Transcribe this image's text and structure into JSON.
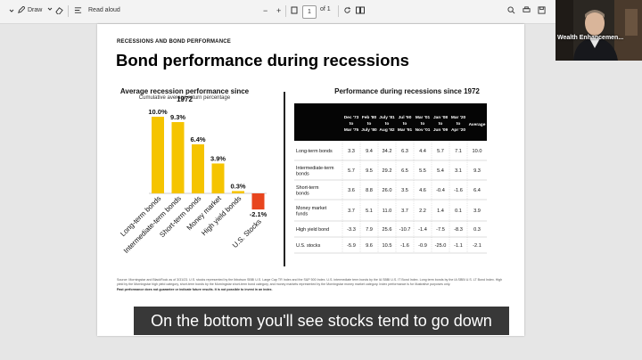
{
  "toolbar": {
    "draw_label": "Draw",
    "read_aloud_label": "Read aloud",
    "zoom_minus": "−",
    "zoom_plus": "+",
    "page_number": "1",
    "page_total": "of 1"
  },
  "document": {
    "eyebrow": "RECESSIONS AND BOND PERFORMANCE",
    "title": "Bond performance during recessions",
    "footnote_line1": "Source: Morningstar and BlackRock as of 3/31/23. U.S. stocks represented by the Ibbotson SBBI U.S. Large Cap TR Index and the S&P 500 Index. U.S. intermediate term bonds by the IA SBBI U.S. IT Bond Index. Long term bonds by the IA SBBI U.S. LT Bond Index. High yield by the Morningstar high yield category, short-term bonds by the Morningstar short-term bond category, and money markets represented by the Morningstar money market category. Index performance is for illustrative purposes only.",
    "footnote_line2": "Past performance does not guarantee or indicate future results. It is not possible to invest in an index."
  },
  "left_chart": {
    "title": "Average recession performance since 1972",
    "subtitle": "Cumulative average return percentage"
  },
  "right_table": {
    "title": "Performance during recessions since 1972"
  },
  "chart_data": [
    {
      "type": "bar",
      "title": "Average recession performance since 1972",
      "subtitle": "Cumulative average return percentage",
      "categories": [
        "Long-term bonds",
        "Intermediate-term bonds",
        "Short-term bonds",
        "Money market",
        "High yield bonds",
        "U.S. Stocks"
      ],
      "values": [
        10.0,
        9.3,
        6.4,
        3.9,
        0.3,
        -2.1
      ],
      "data_labels": [
        "10.0%",
        "9.3%",
        "6.4%",
        "3.9%",
        "0.3%",
        "-2.1%"
      ],
      "colors": {
        "positive": "#F5C400",
        "negative": "#E8451E"
      },
      "xlabel": "",
      "ylabel": "",
      "grid": false
    },
    {
      "type": "table",
      "title": "Performance during recessions since 1972",
      "columns": [
        "",
        "Dec '73 to Mar '75",
        "Feb '80 to July '80",
        "July '81 to Aug '82",
        "Jul '90 to Mar '91",
        "Mar '01 to Nov '01",
        "Jan '08 to Jun '09",
        "Mar '20 to Apr '20",
        "Average"
      ],
      "rows": [
        {
          "label": "Long-term bonds",
          "values": [
            "3.3",
            "9.4",
            "34.2",
            "6.3",
            "4.4",
            "5.7",
            "7.1",
            "10.0"
          ]
        },
        {
          "label": "Intermediate-term bonds",
          "values": [
            "5.7",
            "9.5",
            "29.2",
            "6.5",
            "5.5",
            "5.4",
            "3.1",
            "9.3"
          ]
        },
        {
          "label": "Short-term bonds",
          "values": [
            "3.6",
            "8.8",
            "26.0",
            "3.5",
            "4.6",
            "-0.4",
            "-1.6",
            "6.4"
          ]
        },
        {
          "label": "Money market funds",
          "values": [
            "3.7",
            "5.1",
            "11.0",
            "3.7",
            "2.2",
            "1.4",
            "0.1",
            "3.9"
          ]
        },
        {
          "label": "High yield bond",
          "values": [
            "-3.3",
            "7.9",
            "25.6",
            "-10.7",
            "-1.4",
            "-7.5",
            "-8.3",
            "0.3"
          ]
        },
        {
          "label": "U.S. stocks",
          "values": [
            "-5.9",
            "9.6",
            "10.5",
            "-1.6",
            "-0.9",
            "-25.0",
            "-1.1",
            "-2.1"
          ]
        }
      ]
    }
  ],
  "webcam": {
    "name_label": "Wealth Enhancemen..."
  },
  "caption": {
    "text": "On the bottom you'll see stocks tend to go down"
  }
}
